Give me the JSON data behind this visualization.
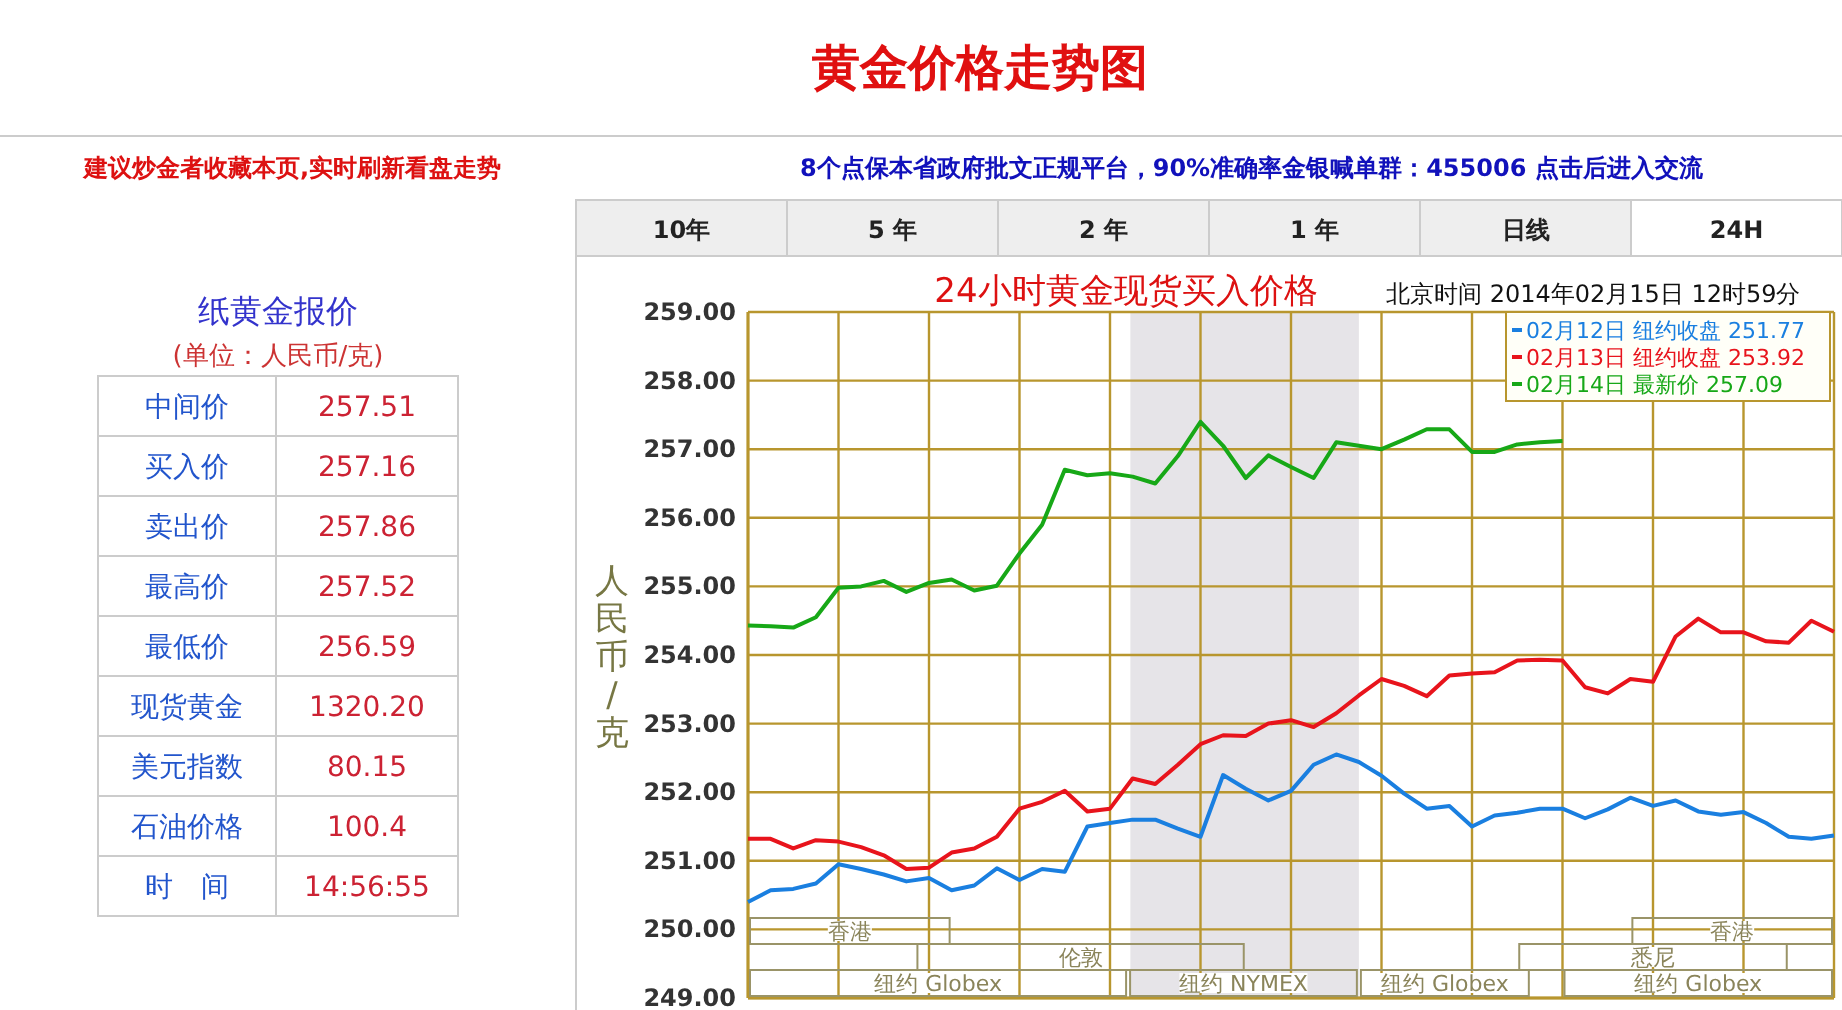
{
  "chart_data": [
    {
      "type": "other",
      "title": "纸黄金报价",
      "subtitle": "(单位：人民币/克)",
      "categories": [
        "中间价",
        "买入价",
        "卖出价",
        "最高价",
        "最低价",
        "现货黄金",
        "美元指数",
        "石油价格",
        "时　间"
      ],
      "value_labels": [
        "257.51",
        "257.16",
        "257.86",
        "257.52",
        "256.59",
        "1320.20",
        "80.15",
        "100.4",
        "14:56:55"
      ]
    },
    {
      "type": "line",
      "title": "黄金价格走势图",
      "subtitle": "24小时黄金现货买入价格",
      "ylabel": "人民币/克",
      "annotations": [
        "建议炒金者收藏本页,实时刷新看盘走势",
        "8个点保本省政府批文正规平台，90%准确率金银喊单群：455006  点击后进入交流",
        "北京时间  2014年02月15日 12时59分",
        "10年",
        "5 年",
        "2 年",
        "1 年",
        "日线",
        "24H",
        "香港",
        "伦敦",
        "纽约 Globex",
        "纽约 NYMEX",
        "纽约 Globex",
        "悉尼",
        "香港",
        "纽约 Globex"
      ],
      "categories": [
        null,
        null,
        null,
        null,
        null,
        null,
        null,
        null,
        null,
        null,
        null,
        null,
        null,
        null,
        null,
        null,
        null,
        null,
        null,
        null,
        null,
        null,
        null,
        null,
        null,
        null,
        null,
        null,
        null,
        null,
        null,
        null,
        null,
        null,
        null,
        null,
        null,
        null,
        null,
        null,
        null,
        null,
        null,
        null,
        null,
        null,
        null,
        null,
        null
      ],
      "ylim": [
        249,
        259
      ],
      "yticks": [
        {
          "value": 249,
          "label": "249.00"
        },
        {
          "value": 250,
          "label": "250.00"
        },
        {
          "value": 251,
          "label": "251.00"
        },
        {
          "value": 252,
          "label": "252.00"
        },
        {
          "value": 253,
          "label": "253.00"
        },
        {
          "value": 254,
          "label": "254.00"
        },
        {
          "value": 255,
          "label": "255.00"
        },
        {
          "value": 256,
          "label": "256.00"
        },
        {
          "value": 257,
          "label": "257.00"
        },
        {
          "value": 258,
          "label": "258.00"
        },
        {
          "value": 259,
          "label": "259.00"
        }
      ],
      "tick_labels": "y",
      "grid": true,
      "legend": "top right",
      "series": [
        {
          "name": "02月12日 纽约收盘 251.77",
          "color": "#1a7fe0",
          "values": [
            250.4,
            250.57,
            250.59,
            250.67,
            250.95,
            250.88,
            250.8,
            250.7,
            250.75,
            250.57,
            250.64,
            250.89,
            250.72,
            250.88,
            250.84,
            251.5,
            251.55,
            251.6,
            251.6,
            251.47,
            251.35,
            252.25,
            252.05,
            251.88,
            252.02,
            252.4,
            252.55,
            252.44,
            252.24,
            251.98,
            251.76,
            251.8,
            251.5,
            251.66,
            251.7,
            251.76,
            251.76,
            251.62,
            251.75,
            251.92,
            251.8,
            251.88,
            251.72,
            251.67,
            251.71,
            251.55,
            251.35,
            251.32,
            251.37
          ]
        },
        {
          "name": "02月13日 纽约收盘 253.92",
          "color": "#e8141c",
          "values": [
            251.32,
            251.32,
            251.18,
            251.3,
            251.28,
            251.2,
            251.08,
            250.88,
            250.9,
            251.12,
            251.18,
            251.35,
            251.76,
            251.86,
            252.02,
            251.72,
            251.76,
            252.2,
            252.12,
            252.4,
            252.7,
            252.83,
            252.82,
            253.0,
            253.05,
            252.95,
            253.15,
            253.41,
            253.65,
            253.55,
            253.4,
            253.7,
            253.73,
            253.75,
            253.92,
            253.93,
            253.92,
            253.53,
            253.44,
            253.65,
            253.61,
            254.27,
            254.53,
            254.33,
            254.33,
            254.2,
            254.18,
            254.5,
            254.34
          ]
        },
        {
          "name": "02月14日 最新价 257.09",
          "color": "#17a817",
          "values": [
            254.43,
            254.42,
            254.4,
            254.55,
            254.98,
            255.0,
            255.08,
            254.92,
            255.05,
            255.1,
            254.94,
            255.01,
            255.48,
            255.9,
            256.7,
            256.62,
            256.65,
            256.6,
            256.5,
            256.9,
            257.4,
            257.05,
            256.58,
            256.91,
            256.74,
            256.58,
            257.1,
            257.05,
            257.0,
            257.14,
            257.29,
            257.29,
            256.96,
            256.96,
            257.07,
            257.1,
            257.12,
            null,
            null,
            null,
            null,
            null,
            null,
            null,
            null,
            null,
            null,
            null,
            null
          ]
        }
      ]
    }
  ]
}
